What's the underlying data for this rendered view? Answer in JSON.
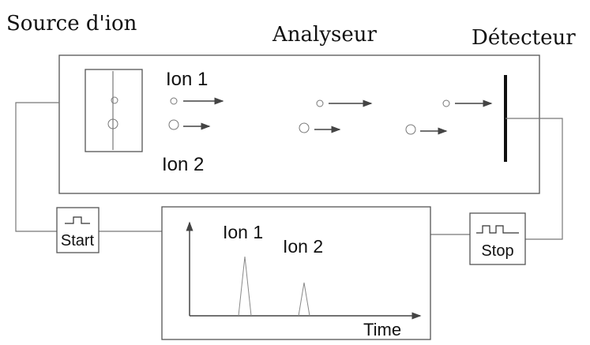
{
  "titles": {
    "source": "Source d'ion",
    "analyzer": "Analyseur",
    "detector": "Détecteur"
  },
  "chamber": {
    "ion1": "Ion 1",
    "ion2": "Ion 2"
  },
  "start": "Start",
  "stop": "Stop",
  "plot": {
    "ion1": "Ion 1",
    "ion2": "Ion 2",
    "x_label": "Time"
  }
}
